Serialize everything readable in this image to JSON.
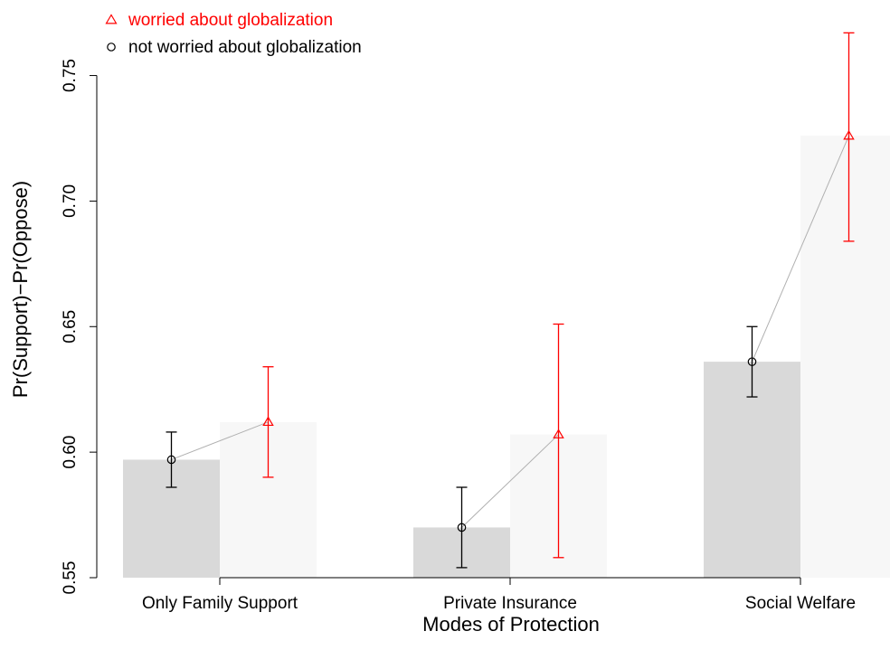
{
  "chart_data": {
    "type": "bar",
    "title": "",
    "xlabel": "Modes of Protection",
    "ylabel": "Pr(Support)−Pr(Oppose)",
    "ylim": [
      0.55,
      0.77
    ],
    "yticks": [
      "0.55",
      "0.60",
      "0.65",
      "0.70",
      "0.75"
    ],
    "categories": [
      "Only Family Support",
      "Private Insurance",
      "Social Welfare"
    ],
    "grid": false,
    "legend_position": "top-left",
    "series": [
      {
        "name": "not worried about globalization",
        "marker": "circle",
        "color": "#000000",
        "bar_color": "#d9d9d9",
        "values": [
          0.597,
          0.57,
          0.636
        ],
        "ci_low": [
          0.586,
          0.554,
          0.622
        ],
        "ci_high": [
          0.608,
          0.586,
          0.65
        ]
      },
      {
        "name": "worried about globalization",
        "marker": "triangle",
        "color": "#ff0000",
        "bar_color": "#f7f7f7",
        "values": [
          0.612,
          0.607,
          0.726
        ],
        "ci_low": [
          0.59,
          0.558,
          0.684
        ],
        "ci_high": [
          0.634,
          0.651,
          0.767
        ]
      }
    ],
    "legend_order": [
      "worried about globalization",
      "not worried about globalization"
    ],
    "connector_color": "#b0b0b0"
  }
}
